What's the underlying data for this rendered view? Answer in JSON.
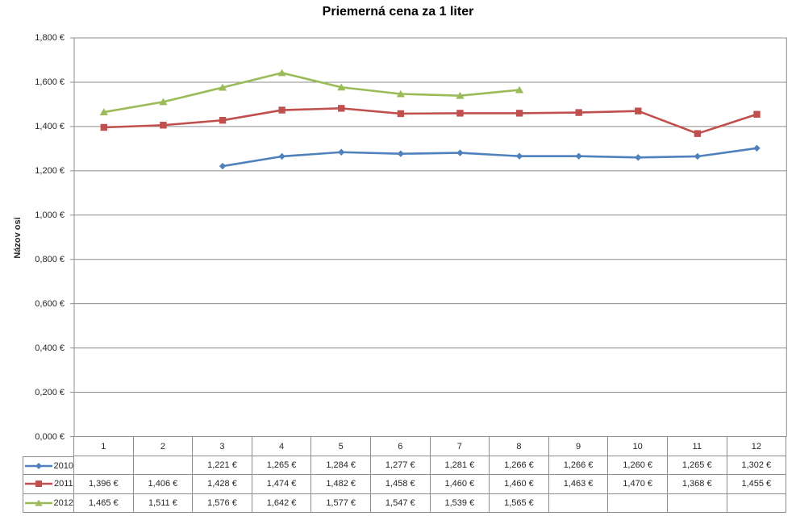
{
  "title": "Priemerná cena za 1 liter",
  "y_axis": {
    "title": "Názov osi",
    "tick_labels": [
      "1,800 €",
      "1,600 €",
      "1,400 €",
      "1,200 €",
      "1,000 €",
      "0,800 €",
      "0,600 €",
      "0,400 €",
      "0,200 €",
      "0,000 €"
    ]
  },
  "colors": {
    "series_2010": "#4F81BD",
    "series_2011": "#C0504D",
    "series_2012": "#9BBB59",
    "gridline": "#8C8C8C",
    "table_border": "#8C8C8C",
    "text": "#262626",
    "title_text": "#000000",
    "background": "#FFFFFF"
  },
  "chart_data": {
    "type": "line",
    "title": "Priemerná cena za 1 liter",
    "ylabel": "Názov osi",
    "xlabel": "",
    "categories": [
      "1",
      "2",
      "3",
      "4",
      "5",
      "6",
      "7",
      "8",
      "9",
      "10",
      "11",
      "12"
    ],
    "series": [
      {
        "name": "2010",
        "marker": "diamond",
        "color": "#4F81BD",
        "values": [
          null,
          null,
          1.221,
          1.265,
          1.284,
          1.277,
          1.281,
          1.266,
          1.266,
          1.26,
          1.265,
          1.302
        ]
      },
      {
        "name": "2011",
        "marker": "square",
        "color": "#C0504D",
        "values": [
          1.396,
          1.406,
          1.428,
          1.474,
          1.482,
          1.458,
          1.46,
          1.46,
          1.463,
          1.47,
          1.368,
          1.455
        ]
      },
      {
        "name": "2012",
        "marker": "triangle",
        "color": "#9BBB59",
        "values": [
          1.465,
          1.511,
          1.576,
          1.642,
          1.577,
          1.547,
          1.539,
          1.565,
          null,
          null,
          null,
          null
        ]
      }
    ],
    "ylim": [
      0,
      1.8
    ],
    "y_step": 0.2,
    "grid": true,
    "legend_position": "left-of-data-table",
    "data_table_shown": true
  },
  "data_table": {
    "header": [
      "1",
      "2",
      "3",
      "4",
      "5",
      "6",
      "7",
      "8",
      "9",
      "10",
      "11",
      "12"
    ],
    "rows": [
      {
        "label": "2010",
        "cells": [
          "",
          "",
          "1,221 €",
          "1,265 €",
          "1,284 €",
          "1,277 €",
          "1,281 €",
          "1,266 €",
          "1,266 €",
          "1,260 €",
          "1,265 €",
          "1,302 €"
        ]
      },
      {
        "label": "2011",
        "cells": [
          "1,396 €",
          "1,406 €",
          "1,428 €",
          "1,474 €",
          "1,482 €",
          "1,458 €",
          "1,460 €",
          "1,460 €",
          "1,463 €",
          "1,470 €",
          "1,368 €",
          "1,455 €"
        ]
      },
      {
        "label": "2012",
        "cells": [
          "1,465 €",
          "1,511 €",
          "1,576 €",
          "1,642 €",
          "1,577 €",
          "1,547 €",
          "1,539 €",
          "1,565 €",
          "",
          "",
          "",
          ""
        ]
      }
    ]
  }
}
